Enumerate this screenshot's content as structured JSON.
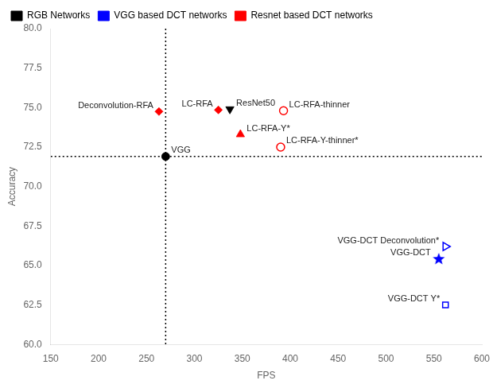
{
  "chart_data": {
    "type": "scatter",
    "xlabel": "FPS",
    "ylabel": "Accuracy",
    "xlim": [
      150,
      600
    ],
    "ylim": [
      60.0,
      80.0
    ],
    "xticks": [
      150,
      200,
      250,
      300,
      350,
      400,
      450,
      500,
      550,
      600
    ],
    "yticks": [
      {
        "value": 60.0,
        "label": "60.0"
      },
      {
        "value": 62.5,
        "label": "62.5"
      },
      {
        "value": 65.0,
        "label": "65.0"
      },
      {
        "value": 67.5,
        "label": "67.5"
      },
      {
        "value": 70.0,
        "label": "70.0"
      },
      {
        "value": 72.5,
        "label": "72.5"
      },
      {
        "value": 75.0,
        "label": "75.0"
      },
      {
        "value": 77.5,
        "label": "77.5"
      },
      {
        "value": 80.0,
        "label": "80.0"
      }
    ],
    "grid": false,
    "legend": "upper left",
    "hline_y": 71.9,
    "vline_x": 270,
    "points": [
      {
        "label": "VGG",
        "x": 270,
        "y": 71.9,
        "marker": "circle",
        "color": "black"
      },
      {
        "label": "ResNet50",
        "x": 337,
        "y": 74.9,
        "marker": "triangle-down",
        "color": "black"
      },
      {
        "label": "LC-RFA",
        "x": 325,
        "y": 74.85,
        "marker": "diamond",
        "color": "red"
      },
      {
        "label": "Deconvolution-RFA",
        "x": 263,
        "y": 74.75,
        "marker": "diamond",
        "color": "red"
      },
      {
        "label": "LC-RFA-thinner",
        "x": 393,
        "y": 74.8,
        "marker": "circle-open",
        "color": "red"
      },
      {
        "label": "LC-RFA-Y*",
        "x": 348,
        "y": 73.3,
        "marker": "triangle-up",
        "color": "red"
      },
      {
        "label": "LC-RFA-Y-thinner*",
        "x": 390,
        "y": 72.5,
        "marker": "circle-open",
        "color": "red"
      },
      {
        "label": "VGG-DCT Deconvolution*",
        "x": 562,
        "y": 66.2,
        "marker": "triangle-right-open",
        "color": "blue"
      },
      {
        "label": "VGG-DCT",
        "x": 555,
        "y": 65.4,
        "marker": "star",
        "color": "blue"
      },
      {
        "label": "VGG-DCT Y*",
        "x": 562,
        "y": 62.5,
        "marker": "square-open",
        "color": "blue"
      }
    ],
    "legend_entries": [
      {
        "label": "RGB Networks",
        "color": "black"
      },
      {
        "label": "VGG based DCT networks",
        "color": "blue"
      },
      {
        "label": "Resnet based DCT networks",
        "color": "red"
      }
    ]
  }
}
